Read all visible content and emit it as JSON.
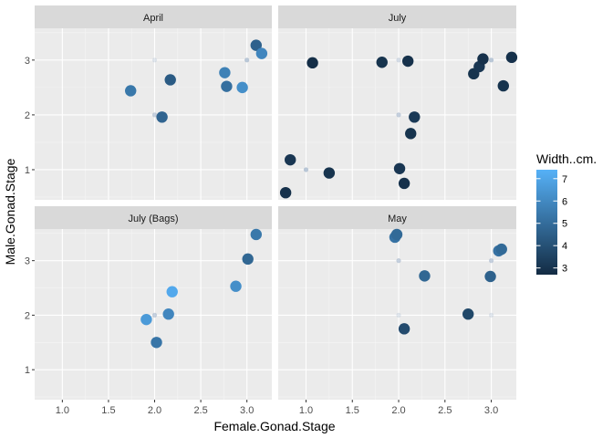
{
  "chart_data": {
    "type": "scatter",
    "xlabel": "Female.Gonad.Stage",
    "ylabel": "Male.Gonad.Stage",
    "xlim": [
      0.7,
      3.27
    ],
    "ylim": [
      0.45,
      3.58
    ],
    "x_ticks": [
      "1.0",
      "1.5",
      "2.0",
      "2.5",
      "3.0"
    ],
    "x_tick_values": [
      1.0,
      1.5,
      2.0,
      2.5,
      3.0
    ],
    "y_ticks": [
      "1",
      "2",
      "3"
    ],
    "y_tick_values": [
      1,
      2,
      3
    ],
    "grid": true,
    "legend": {
      "title": "Width..cm.",
      "placement": "right",
      "labels": [
        "7",
        "6",
        "5",
        "4",
        "3"
      ],
      "values": [
        7,
        6,
        5,
        4,
        3
      ],
      "range": [
        2.7,
        7.4
      ],
      "low_color": "#132B43",
      "high_color": "#56B1F7"
    },
    "panels": [
      {
        "title": "April",
        "points": [
          {
            "x": 1.74,
            "y": 2.44,
            "w": 5.4
          },
          {
            "x": 2.08,
            "y": 1.96,
            "w": 4.7
          },
          {
            "x": 2.17,
            "y": 2.64,
            "w": 4.4
          },
          {
            "x": 2.76,
            "y": 2.77,
            "w": 5.7
          },
          {
            "x": 2.78,
            "y": 2.52,
            "w": 5.1
          },
          {
            "x": 2.95,
            "y": 2.5,
            "w": 6.2
          },
          {
            "x": 3.1,
            "y": 3.27,
            "w": 4.6
          },
          {
            "x": 3.16,
            "y": 3.12,
            "w": 5.9
          }
        ],
        "faint_points": [
          {
            "x": 2.0,
            "y": 3.0,
            "o": 0.25
          },
          {
            "x": 2.0,
            "y": 2.0,
            "o": 0.5
          },
          {
            "x": 3.0,
            "y": 3.0,
            "o": 0.6
          }
        ]
      },
      {
        "title": "July",
        "points": [
          {
            "x": 0.78,
            "y": 0.58,
            "w": 2.9
          },
          {
            "x": 0.83,
            "y": 1.18,
            "w": 3.1
          },
          {
            "x": 1.07,
            "y": 2.95,
            "w": 2.8
          },
          {
            "x": 1.25,
            "y": 0.94,
            "w": 3.0
          },
          {
            "x": 1.82,
            "y": 2.96,
            "w": 3.0
          },
          {
            "x": 2.01,
            "y": 1.02,
            "w": 3.1
          },
          {
            "x": 2.06,
            "y": 0.75,
            "w": 2.9
          },
          {
            "x": 2.1,
            "y": 2.98,
            "w": 2.9
          },
          {
            "x": 2.13,
            "y": 1.66,
            "w": 3.0
          },
          {
            "x": 2.17,
            "y": 1.96,
            "w": 3.2
          },
          {
            "x": 2.81,
            "y": 2.75,
            "w": 3.0
          },
          {
            "x": 2.87,
            "y": 2.88,
            "w": 3.1
          },
          {
            "x": 2.91,
            "y": 3.02,
            "w": 2.9
          },
          {
            "x": 3.13,
            "y": 2.53,
            "w": 3.0
          },
          {
            "x": 3.22,
            "y": 3.05,
            "w": 2.9
          }
        ],
        "faint_points": [
          {
            "x": 1.0,
            "y": 1.0,
            "o": 0.6
          },
          {
            "x": 2.0,
            "y": 2.0,
            "o": 0.5
          },
          {
            "x": 2.0,
            "y": 3.0,
            "o": 0.35
          },
          {
            "x": 3.0,
            "y": 3.0,
            "o": 0.6
          }
        ]
      },
      {
        "title": "July (Bags)",
        "points": [
          {
            "x": 1.91,
            "y": 1.92,
            "w": 6.6
          },
          {
            "x": 2.02,
            "y": 1.5,
            "w": 5.3
          },
          {
            "x": 2.15,
            "y": 2.02,
            "w": 5.9
          },
          {
            "x": 2.19,
            "y": 2.43,
            "w": 7.1
          },
          {
            "x": 2.88,
            "y": 2.53,
            "w": 6.2
          },
          {
            "x": 3.01,
            "y": 3.03,
            "w": 4.8
          },
          {
            "x": 3.1,
            "y": 3.48,
            "w": 5.4
          }
        ],
        "faint_points": [
          {
            "x": 2.0,
            "y": 2.0,
            "o": 0.5
          }
        ]
      },
      {
        "title": "May",
        "points": [
          {
            "x": 1.96,
            "y": 3.43,
            "w": 5.2
          },
          {
            "x": 1.98,
            "y": 3.48,
            "w": 4.9
          },
          {
            "x": 2.06,
            "y": 1.75,
            "w": 3.8
          },
          {
            "x": 2.28,
            "y": 2.72,
            "w": 4.8
          },
          {
            "x": 2.75,
            "y": 2.02,
            "w": 3.7
          },
          {
            "x": 2.99,
            "y": 2.71,
            "w": 4.6
          },
          {
            "x": 3.08,
            "y": 3.18,
            "w": 5.2
          },
          {
            "x": 3.11,
            "y": 3.21,
            "w": 4.9
          }
        ],
        "faint_points": [
          {
            "x": 2.0,
            "y": 3.0,
            "o": 0.5
          },
          {
            "x": 2.0,
            "y": 2.0,
            "o": 0.25
          },
          {
            "x": 3.0,
            "y": 3.0,
            "o": 0.5
          },
          {
            "x": 3.0,
            "y": 2.0,
            "o": 0.25
          }
        ]
      }
    ]
  }
}
